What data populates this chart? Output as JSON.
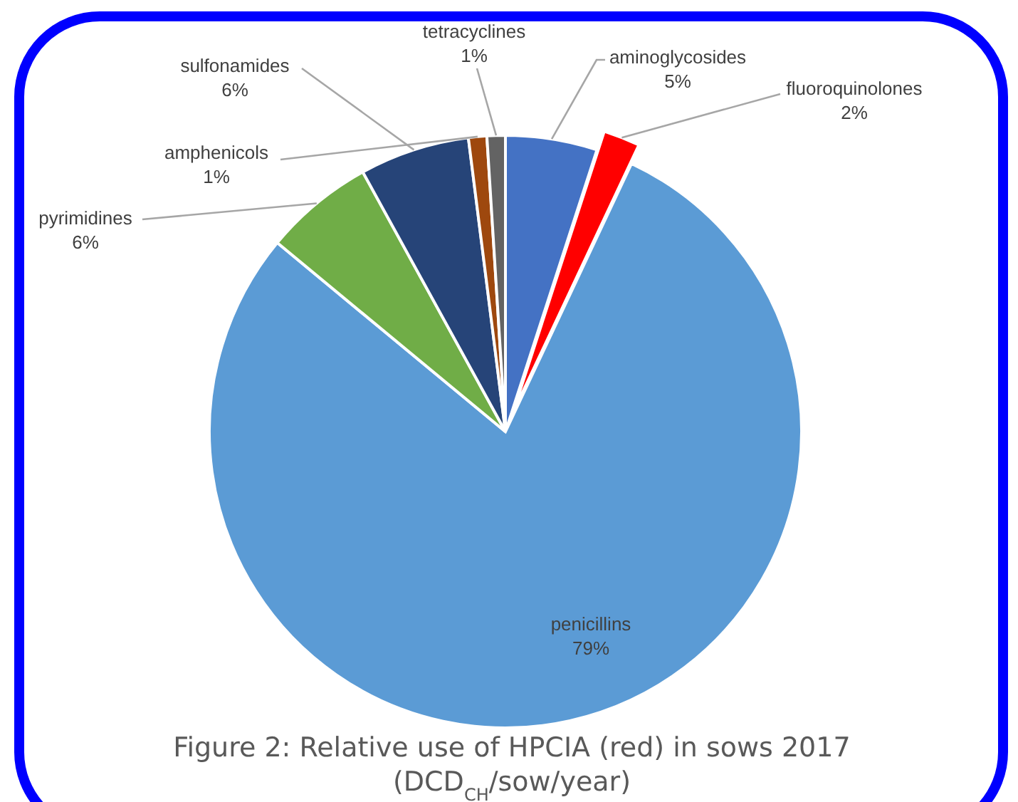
{
  "chart_data": {
    "type": "pie",
    "title": "Figure 2: Relative use of HPCIA (red) in sows 2017 (DCD$_{CH}$/sow/year)",
    "categories": [
      "aminoglycosides",
      "fluoroquinolones",
      "penicillins",
      "pyrimidines",
      "sulfonamides",
      "amphenicols",
      "tetracyclines"
    ],
    "values": [
      5,
      2,
      79,
      6,
      6,
      1,
      1
    ],
    "value_labels": [
      "5%",
      "2%",
      "79%",
      "6%",
      "6%",
      "1%",
      "1%"
    ],
    "colors": [
      "#4472c4",
      "#ff0000",
      "#5b9bd5",
      "#70ad47",
      "#264478",
      "#9e480e",
      "#636363"
    ],
    "legend": false
  }
}
